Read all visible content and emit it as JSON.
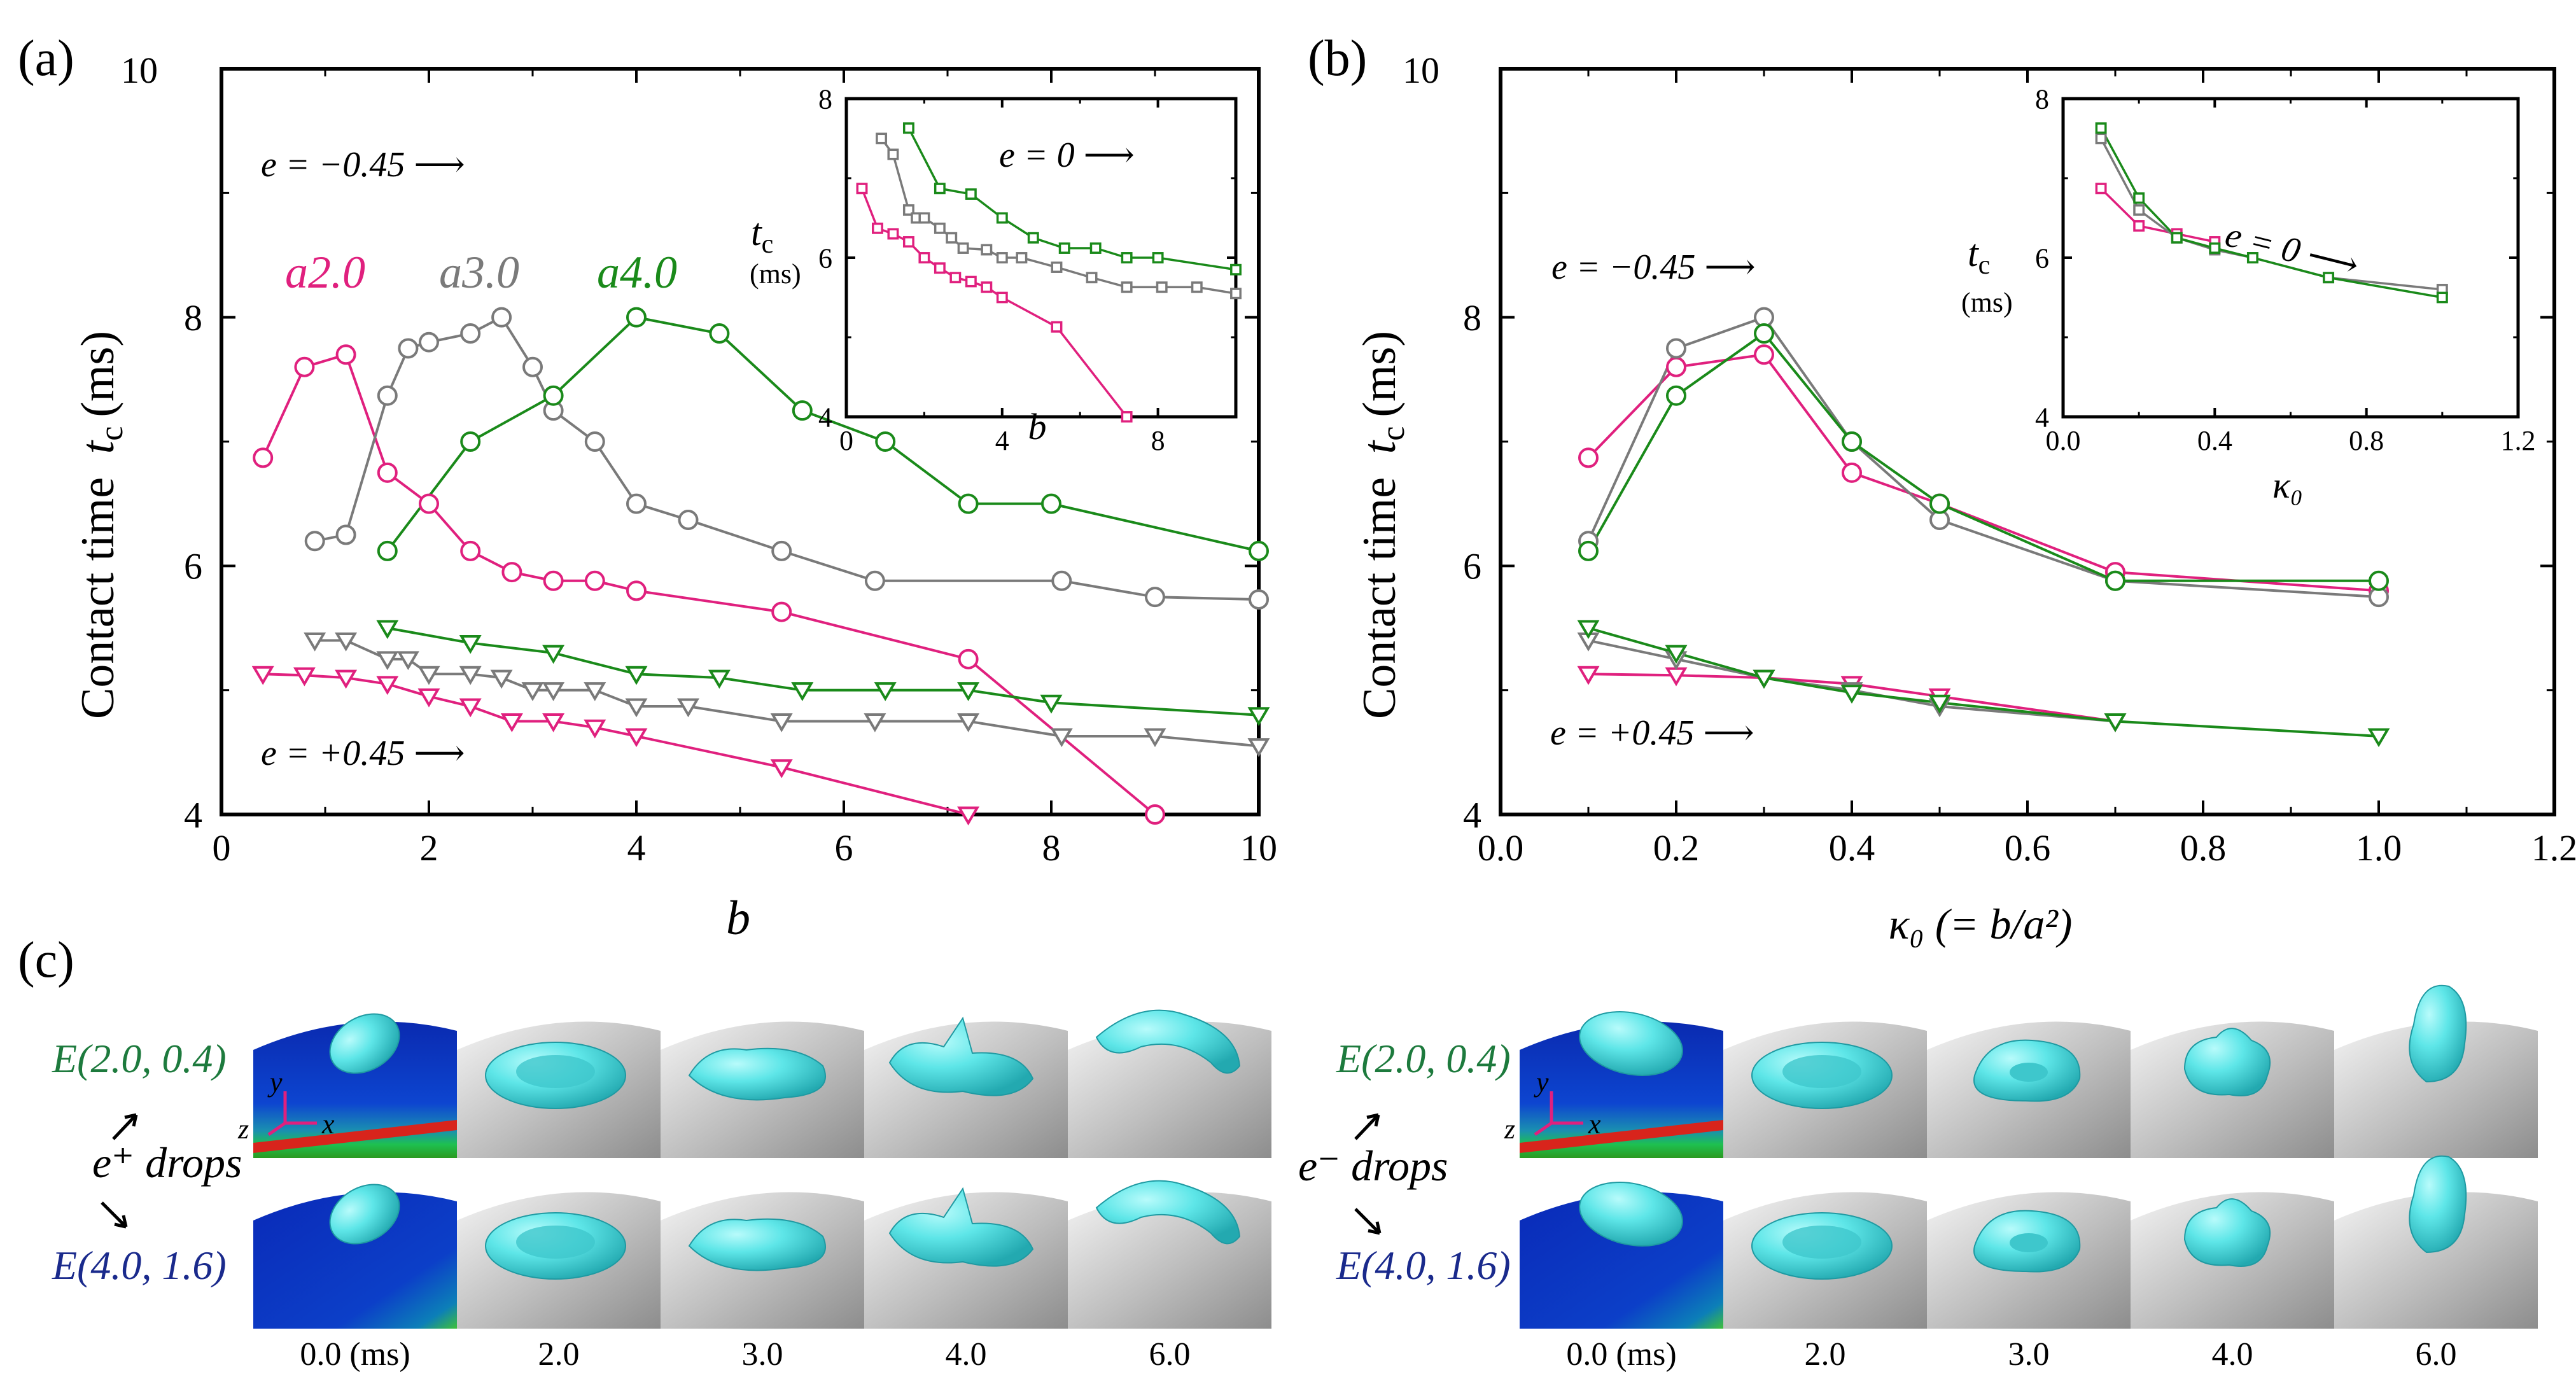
{
  "colors": {
    "a2": "#e0207e",
    "a3": "#7a7a7a",
    "a4": "#1a8a1a",
    "drop": "#4fe4e6",
    "navy": "#1a2a8c",
    "green_label": "#1d7a3d"
  },
  "panel_a": {
    "label": "(a)",
    "ylabel_main": "Contact time",
    "ylabel_t": "t",
    "ylabel_sub": "c",
    "ylabel_unit": "(ms)",
    "xlabel": "b",
    "labels": {
      "e_neg": "e = −0.45 ⟶",
      "e_pos": "e = +0.45 ⟶",
      "a2": "a2.0",
      "a3": "a3.0",
      "a4": "a4.0"
    },
    "inset": {
      "e0": "e = 0 ⟶",
      "ylabel": "t",
      "ylabel_sub": "c",
      "yunit": "(ms)",
      "xlabel": "b"
    }
  },
  "panel_b": {
    "label": "(b)",
    "ylabel_main": "Contact time",
    "ylabel_t": "t",
    "ylabel_sub": "c",
    "ylabel_unit": "(ms)",
    "xlabel": "κ₀ (= b/a²)",
    "labels": {
      "e_neg": "e = −0.45 ⟶",
      "e_pos": "e = +0.45 ⟶"
    },
    "inset": {
      "e0": "e = 0 ⟶",
      "ylabel": "t",
      "ylabel_sub": "c",
      "yunit": "(ms)",
      "xlabel": "κ₀"
    }
  },
  "panel_c": {
    "label": "(c)",
    "left_group": {
      "top_label": "E(2.0, 0.4)",
      "middle_label": "e⁺ drops",
      "bottom_label": "E(4.0, 1.6)"
    },
    "right_group": {
      "top_label": "E(2.0, 0.4)",
      "middle_label": "e⁻ drops",
      "bottom_label": "E(4.0, 1.6)"
    },
    "axes": {
      "y": "y",
      "x": "x",
      "z": "z"
    },
    "time_labels": [
      "0.0 (ms)",
      "2.0",
      "3.0",
      "4.0",
      "6.0"
    ]
  },
  "chart_data": [
    {
      "type": "line",
      "panel": "(a)",
      "xlabel": "b",
      "ylabel": "Contact time t_c (ms)",
      "xlim": [
        0,
        10
      ],
      "ylim": [
        4,
        10
      ],
      "xticks": [
        0,
        2,
        4,
        6,
        8,
        10
      ],
      "yticks": [
        4,
        6,
        8,
        10
      ],
      "series": [
        {
          "name": "a2.0",
          "color": "#e0207e",
          "marker": "circle",
          "group": "e=-0.45",
          "x": [
            0.4,
            0.8,
            1.2,
            1.6,
            2.0,
            2.4,
            2.8,
            3.2,
            3.6,
            4.0,
            5.4,
            7.2,
            9.0
          ],
          "y": [
            6.87,
            7.6,
            7.7,
            6.75,
            6.5,
            6.12,
            5.95,
            5.88,
            5.88,
            5.8,
            5.63,
            5.25,
            4.0
          ]
        },
        {
          "name": "a3.0",
          "color": "#7a7a7a",
          "marker": "circle",
          "group": "e=-0.45",
          "x": [
            0.9,
            1.2,
            1.6,
            1.8,
            2.0,
            2.4,
            2.7,
            3.0,
            3.2,
            3.6,
            4.0,
            4.5,
            5.4,
            6.3,
            8.1,
            9.0,
            10.0
          ],
          "y": [
            6.2,
            6.25,
            7.37,
            7.75,
            7.8,
            7.87,
            8.0,
            7.6,
            7.25,
            7.0,
            6.5,
            6.37,
            6.12,
            5.88,
            5.88,
            5.75,
            5.73
          ]
        },
        {
          "name": "a4.0",
          "color": "#1a8a1a",
          "marker": "circle",
          "group": "e=-0.45",
          "x": [
            1.6,
            2.4,
            3.2,
            4.0,
            4.8,
            5.6,
            6.4,
            7.2,
            8.0,
            10.0
          ],
          "y": [
            6.12,
            7.0,
            7.37,
            8.0,
            7.87,
            7.25,
            7.0,
            6.5,
            6.5,
            6.12
          ]
        },
        {
          "name": "a2.0",
          "color": "#e0207e",
          "marker": "triangle",
          "group": "e=+0.45",
          "x": [
            0.4,
            0.8,
            1.2,
            1.6,
            2.0,
            2.4,
            2.8,
            3.2,
            3.6,
            4.0,
            5.4,
            7.2
          ],
          "y": [
            5.13,
            5.12,
            5.1,
            5.05,
            4.95,
            4.87,
            4.75,
            4.75,
            4.7,
            4.63,
            4.38,
            4.0
          ]
        },
        {
          "name": "a3.0",
          "color": "#7a7a7a",
          "marker": "triangle",
          "group": "e=+0.45",
          "x": [
            0.9,
            1.2,
            1.6,
            1.8,
            2.0,
            2.4,
            2.7,
            3.0,
            3.2,
            3.6,
            4.0,
            4.5,
            5.4,
            6.3,
            7.2,
            8.1,
            9.0,
            10.0
          ],
          "y": [
            5.4,
            5.4,
            5.25,
            5.25,
            5.13,
            5.13,
            5.1,
            5.0,
            5.0,
            5.0,
            4.87,
            4.87,
            4.75,
            4.75,
            4.75,
            4.63,
            4.63,
            4.55
          ]
        },
        {
          "name": "a4.0",
          "color": "#1a8a1a",
          "marker": "triangle",
          "group": "e=+0.45",
          "x": [
            1.6,
            2.4,
            3.2,
            4.0,
            4.8,
            5.6,
            6.4,
            7.2,
            8.0,
            10.0
          ],
          "y": [
            5.5,
            5.38,
            5.3,
            5.13,
            5.1,
            5.0,
            5.0,
            5.0,
            4.9,
            4.8
          ]
        }
      ]
    },
    {
      "type": "line",
      "panel": "(a) inset",
      "xlabel": "b",
      "ylabel": "t_c (ms)",
      "xlim": [
        0,
        10
      ],
      "ylim": [
        4,
        8
      ],
      "xticks": [
        0,
        4,
        8
      ],
      "yticks": [
        4,
        6,
        8
      ],
      "series": [
        {
          "name": "a2.0",
          "color": "#e0207e",
          "marker": "square",
          "x": [
            0.4,
            0.8,
            1.2,
            1.6,
            2.0,
            2.4,
            2.8,
            3.2,
            3.6,
            4.0,
            5.4,
            7.2
          ],
          "y": [
            6.87,
            6.37,
            6.3,
            6.2,
            6.0,
            5.87,
            5.75,
            5.7,
            5.63,
            5.5,
            5.13,
            4.0
          ]
        },
        {
          "name": "a3.0",
          "color": "#7a7a7a",
          "marker": "square",
          "x": [
            0.9,
            1.2,
            1.6,
            1.8,
            2.0,
            2.4,
            2.7,
            3.0,
            3.6,
            4.0,
            4.5,
            5.4,
            6.3,
            7.2,
            8.1,
            9.0,
            10.0
          ],
          "y": [
            7.5,
            7.3,
            6.6,
            6.5,
            6.5,
            6.37,
            6.25,
            6.12,
            6.1,
            6.0,
            6.0,
            5.88,
            5.75,
            5.63,
            5.63,
            5.63,
            5.55
          ]
        },
        {
          "name": "a4.0",
          "color": "#1a8a1a",
          "marker": "square",
          "x": [
            1.6,
            2.4,
            3.2,
            4.0,
            4.8,
            5.6,
            6.4,
            7.2,
            8.0,
            10.0
          ],
          "y": [
            7.63,
            6.87,
            6.8,
            6.5,
            6.25,
            6.12,
            6.12,
            6.0,
            6.0,
            5.85
          ]
        }
      ]
    },
    {
      "type": "line",
      "panel": "(b)",
      "xlabel": "κ0 (= b/a²)",
      "ylabel": "Contact time t_c (ms)",
      "xlim": [
        0,
        1.2
      ],
      "ylim": [
        4,
        10
      ],
      "xticks": [
        0.0,
        0.2,
        0.4,
        0.6,
        0.8,
        1.0,
        1.2
      ],
      "yticks": [
        4,
        6,
        8,
        10
      ],
      "series": [
        {
          "name": "a2.0",
          "color": "#e0207e",
          "marker": "circle",
          "group": "e=-0.45",
          "x": [
            0.1,
            0.2,
            0.3,
            0.4,
            0.5,
            0.7,
            1.0
          ],
          "y": [
            6.87,
            7.6,
            7.7,
            6.75,
            6.5,
            5.95,
            5.8
          ]
        },
        {
          "name": "a3.0",
          "color": "#7a7a7a",
          "marker": "circle",
          "group": "e=-0.45",
          "x": [
            0.1,
            0.2,
            0.3,
            0.4,
            0.5,
            0.7,
            1.0
          ],
          "y": [
            6.2,
            7.75,
            8.0,
            7.0,
            6.37,
            5.88,
            5.75
          ]
        },
        {
          "name": "a4.0",
          "color": "#1a8a1a",
          "marker": "circle",
          "group": "e=-0.45",
          "x": [
            0.1,
            0.2,
            0.3,
            0.4,
            0.5,
            0.7,
            1.0
          ],
          "y": [
            6.12,
            7.37,
            7.87,
            7.0,
            6.5,
            5.88,
            5.88
          ]
        },
        {
          "name": "a2.0",
          "color": "#e0207e",
          "marker": "triangle",
          "group": "e=+0.45",
          "x": [
            0.1,
            0.2,
            0.3,
            0.4,
            0.5,
            0.7
          ],
          "y": [
            5.13,
            5.12,
            5.1,
            5.05,
            4.95,
            4.75
          ]
        },
        {
          "name": "a3.0",
          "color": "#7a7a7a",
          "marker": "triangle",
          "group": "e=+0.45",
          "x": [
            0.1,
            0.2,
            0.3,
            0.4,
            0.5,
            0.7
          ],
          "y": [
            5.4,
            5.25,
            5.1,
            5.0,
            4.87,
            4.75
          ]
        },
        {
          "name": "a4.0",
          "color": "#1a8a1a",
          "marker": "triangle",
          "group": "e=+0.45",
          "x": [
            0.1,
            0.2,
            0.3,
            0.4,
            0.5,
            0.7,
            1.0
          ],
          "y": [
            5.5,
            5.3,
            5.1,
            4.98,
            4.9,
            4.75,
            4.63
          ]
        }
      ]
    },
    {
      "type": "line",
      "panel": "(b) inset",
      "xlabel": "κ0",
      "ylabel": "t_c (ms)",
      "xlim": [
        0,
        1.2
      ],
      "ylim": [
        4,
        8
      ],
      "xticks": [
        0.0,
        0.4,
        0.8,
        1.2
      ],
      "yticks": [
        4,
        6,
        8
      ],
      "series": [
        {
          "name": "a2.0",
          "color": "#e0207e",
          "marker": "square",
          "x": [
            0.1,
            0.2,
            0.3,
            0.4
          ],
          "y": [
            6.87,
            6.4,
            6.3,
            6.2
          ]
        },
        {
          "name": "a3.0",
          "color": "#7a7a7a",
          "marker": "square",
          "x": [
            0.1,
            0.2,
            0.3,
            0.4,
            0.5,
            0.7,
            1.0
          ],
          "y": [
            7.5,
            6.6,
            6.25,
            6.1,
            6.0,
            5.75,
            5.6
          ]
        },
        {
          "name": "a4.0",
          "color": "#1a8a1a",
          "marker": "square",
          "x": [
            0.1,
            0.2,
            0.3,
            0.4,
            0.5,
            0.7,
            1.0
          ],
          "y": [
            7.63,
            6.75,
            6.25,
            6.12,
            6.0,
            5.75,
            5.5
          ]
        }
      ]
    }
  ]
}
